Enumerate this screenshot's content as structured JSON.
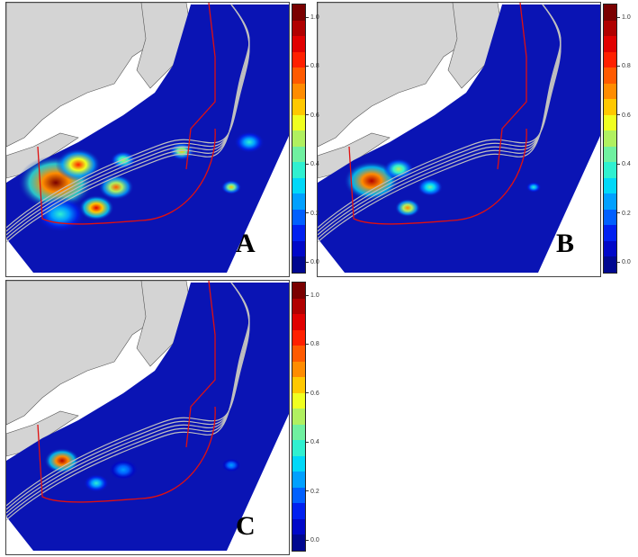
{
  "panels": [
    {
      "label": "A"
    },
    {
      "label": "B"
    },
    {
      "label": "C"
    }
  ],
  "colorbar": {
    "ticks": [
      "1.0",
      "0.8",
      "0.6",
      "0.4",
      "0.2",
      "0.0"
    ],
    "range": [
      0.0,
      1.0
    ],
    "colors": [
      "#7a0000",
      "#b00000",
      "#e00000",
      "#ff2000",
      "#ff5a00",
      "#ff8c00",
      "#ffc800",
      "#f0ff20",
      "#b0f060",
      "#70f0a0",
      "#30f0d0",
      "#00d8f8",
      "#00a0ff",
      "#0060ff",
      "#0020f0",
      "#0008c8",
      "#000890"
    ]
  },
  "map_colors": {
    "land": "#d4d4d4",
    "ocean_survey": "#0a14b4",
    "boundary": "#e01010",
    "bathymetry": "#c0c0c0"
  }
}
